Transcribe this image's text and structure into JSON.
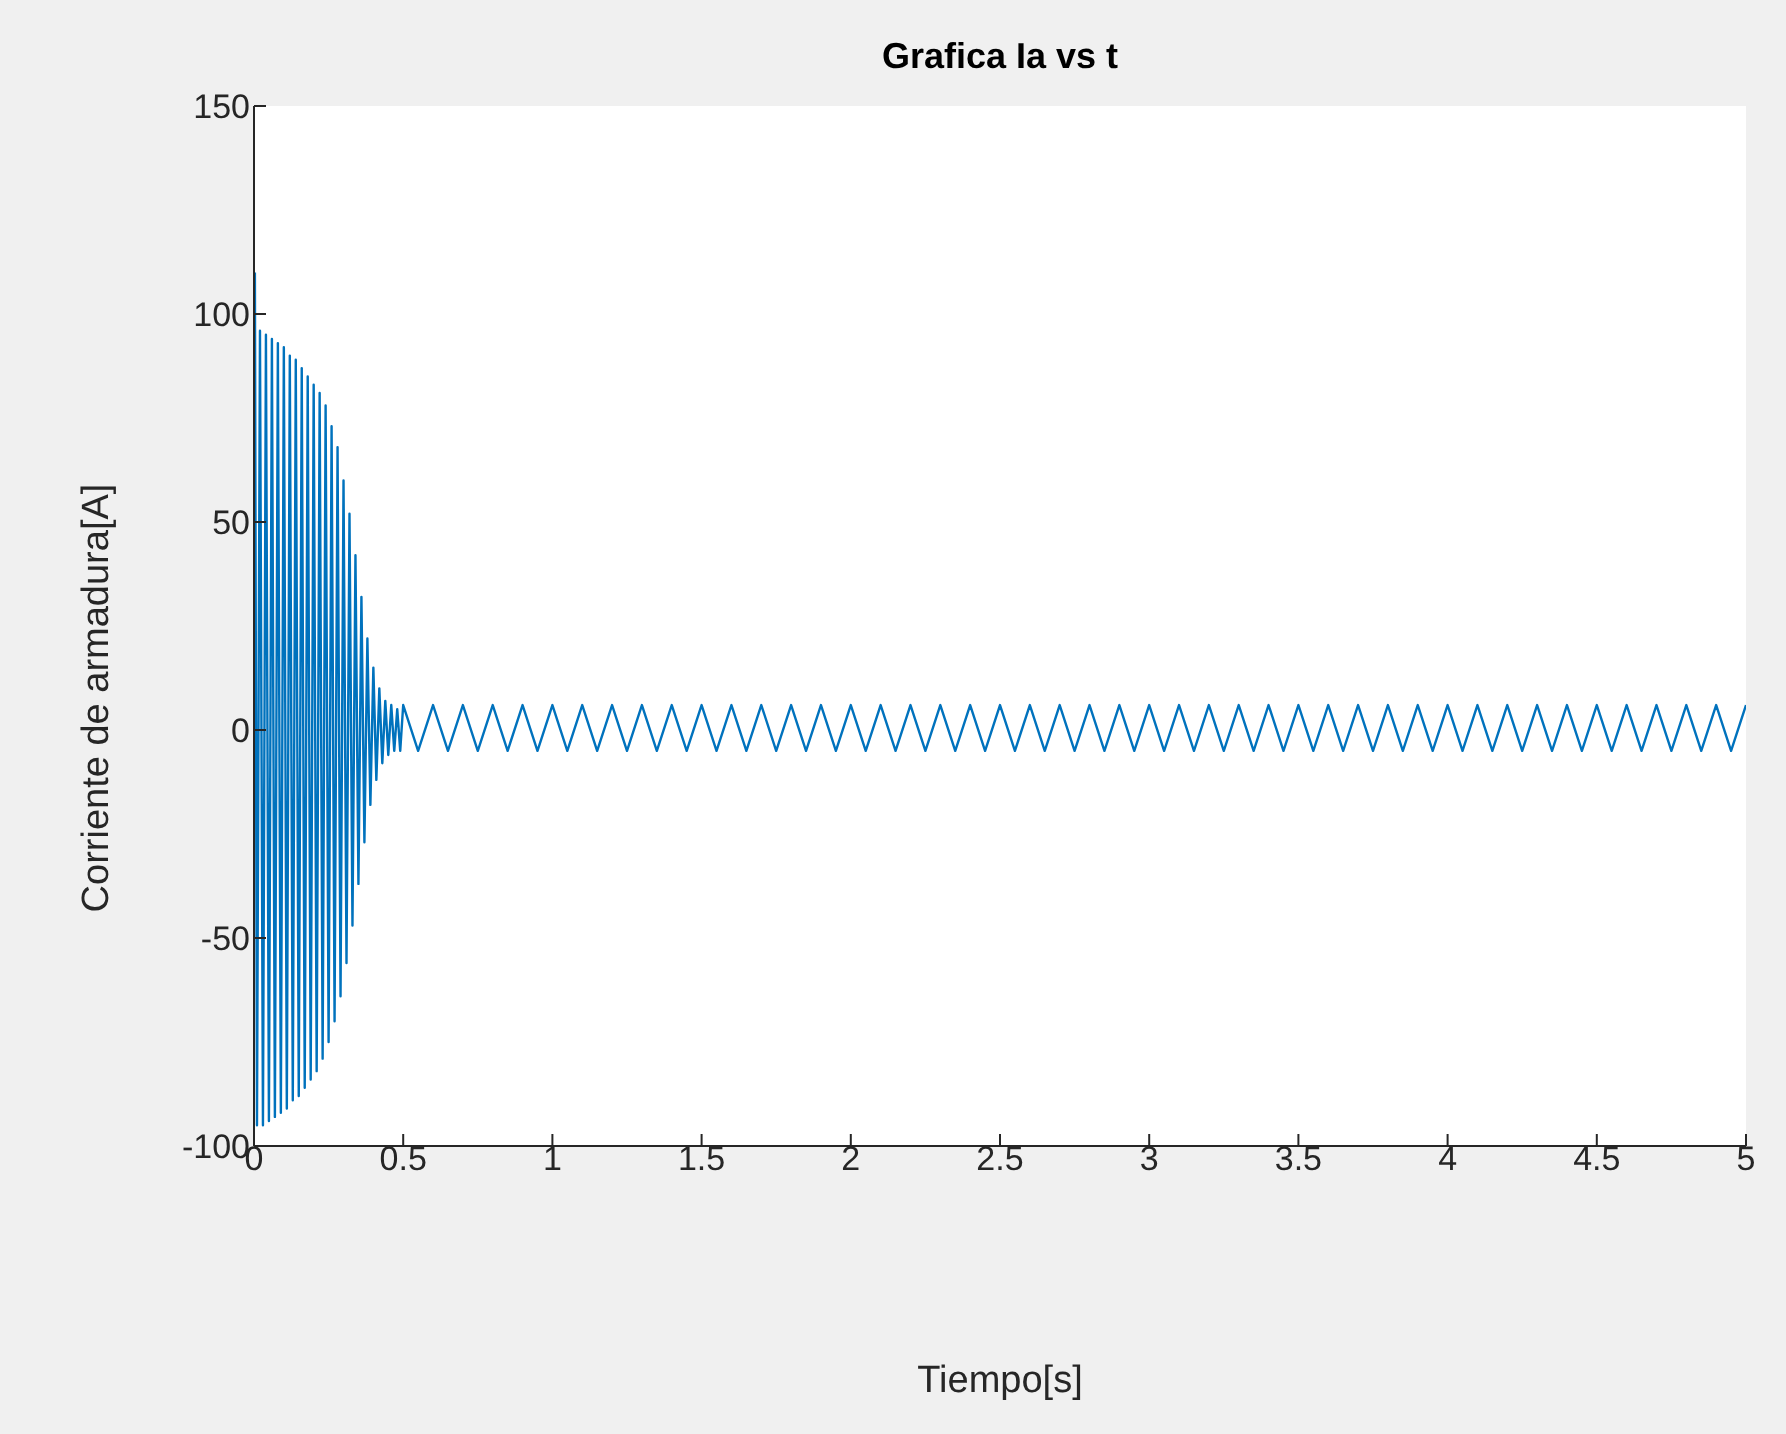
{
  "chart_data": {
    "type": "line",
    "title": "Grafica Ia vs t",
    "xlabel": "Tiempo[s]",
    "ylabel": "Corriente de armadura[A]",
    "x": [
      0.003,
      0.01,
      0.02,
      0.03,
      0.04,
      0.05,
      0.06,
      0.07,
      0.08,
      0.09,
      0.1,
      0.11,
      0.12,
      0.13,
      0.14,
      0.15,
      0.16,
      0.17,
      0.18,
      0.19,
      0.2,
      0.21,
      0.22,
      0.23,
      0.24,
      0.25,
      0.26,
      0.27,
      0.28,
      0.29,
      0.3,
      0.31,
      0.32,
      0.33,
      0.34,
      0.35,
      0.36,
      0.37,
      0.38,
      0.39,
      0.4,
      0.41,
      0.42,
      0.43,
      0.44,
      0.45,
      0.46,
      0.47,
      0.48,
      0.49,
      0.5,
      0.55,
      0.6,
      0.65,
      0.7,
      0.75,
      0.8,
      0.85,
      0.9,
      0.95,
      1,
      1.05,
      1.1,
      1.15,
      1.2,
      1.25,
      1.3,
      1.35,
      1.4,
      1.45,
      1.5,
      1.55,
      1.6,
      1.65,
      1.7,
      1.75,
      1.8,
      1.85,
      1.9,
      1.95,
      2,
      2.05,
      2.1,
      2.15,
      2.2,
      2.25,
      2.3,
      2.35,
      2.4,
      2.45,
      2.5,
      2.55,
      2.6,
      2.65,
      2.7,
      2.75,
      2.8,
      2.85,
      2.9,
      2.95,
      3,
      3.05,
      3.1,
      3.15,
      3.2,
      3.25,
      3.3,
      3.35,
      3.4,
      3.45,
      3.5,
      3.55,
      3.6,
      3.65,
      3.7,
      3.75,
      3.8,
      3.85,
      3.9,
      3.95,
      4,
      4.05,
      4.1,
      4.15,
      4.2,
      4.25,
      4.3,
      4.35,
      4.4,
      4.45,
      4.5,
      4.55,
      4.6,
      4.65,
      4.7,
      4.75,
      4.8,
      4.85,
      4.9,
      4.95,
      5
    ],
    "series": [
      {
        "color": "#0072bd",
        "values": [
          110,
          -95,
          96,
          -95,
          95,
          -94,
          94,
          -93,
          93,
          -92,
          92,
          -91,
          90,
          -89,
          89,
          -88,
          87,
          -86,
          85,
          -84,
          83,
          -82,
          81,
          -79,
          78,
          -75,
          73,
          -70,
          68,
          -64,
          60,
          -56,
          52,
          -47,
          42,
          -37,
          32,
          -27,
          22,
          -18,
          15,
          -12,
          10,
          -8,
          7,
          -6,
          6,
          -5,
          5,
          -5,
          6,
          -5,
          6,
          -5,
          6,
          -5,
          6,
          -5,
          6,
          -5,
          6,
          -5,
          6,
          -5,
          6,
          -5,
          6,
          -5,
          6,
          -5,
          6,
          -5,
          6,
          -5,
          6,
          -5,
          6,
          -5,
          6,
          -5,
          6,
          -5,
          6,
          -5,
          6,
          -5,
          6,
          -5,
          6,
          -5,
          6,
          -5,
          6,
          -5,
          6,
          -5,
          6,
          -5,
          6,
          -5,
          6,
          -5,
          6,
          -5,
          6,
          -5,
          6,
          -5,
          6,
          -5,
          6,
          -5,
          6,
          -5,
          6,
          -5,
          6,
          -5,
          6,
          -5,
          6,
          -5,
          6,
          -5,
          6,
          -5,
          6,
          -5,
          6,
          -5,
          6,
          -5,
          6,
          -5,
          6,
          -5,
          6,
          -5,
          6,
          -5,
          6
        ]
      }
    ],
    "xlim": [
      0,
      5
    ],
    "xticks": [
      0,
      0.5,
      1,
      1.5,
      2,
      2.5,
      3,
      3.5,
      4,
      4.5,
      5
    ],
    "ylim": [
      -100,
      150
    ],
    "yticks": [
      -100,
      -50,
      0,
      50,
      100,
      150
    ]
  }
}
